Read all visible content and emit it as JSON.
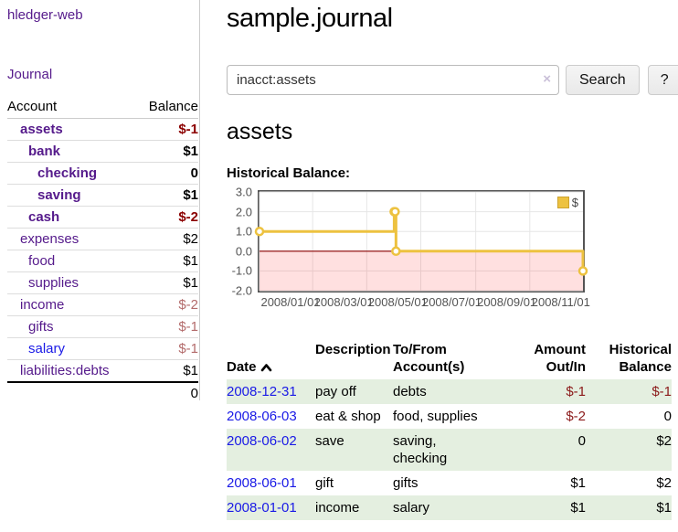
{
  "colors": {
    "brand_purple": "#551a8b",
    "link_blue": "#1a1ae6",
    "negative_strong": "#8b0000",
    "negative_muted": "#b36b6b",
    "negative_table": "#8b1a1a",
    "chart_line_gold": "#edc240",
    "row_green": "#e4efe0"
  },
  "sidebar": {
    "brand": "hledger-web",
    "nav": {
      "journal": "Journal"
    },
    "accounts_table": {
      "headers": {
        "account": "Account",
        "balance": "Balance"
      },
      "rows": [
        {
          "account": "assets",
          "balance": "$-1"
        },
        {
          "account": "bank",
          "balance": "$1"
        },
        {
          "account": "checking",
          "balance": "0"
        },
        {
          "account": "saving",
          "balance": "$1"
        },
        {
          "account": "cash",
          "balance": "$-2"
        },
        {
          "account": "expenses",
          "balance": "$2"
        },
        {
          "account": "food",
          "balance": "$1"
        },
        {
          "account": "supplies",
          "balance": "$1"
        },
        {
          "account": "income",
          "balance": "$-2"
        },
        {
          "account": "gifts",
          "balance": "$-1"
        },
        {
          "account": "salary",
          "balance": "$-1"
        },
        {
          "account": "liabilities:debts",
          "balance": "$1"
        }
      ],
      "total": "0"
    }
  },
  "main": {
    "title": "sample.journal",
    "search": {
      "value": "inacct:assets",
      "clear_icon": "×",
      "search_button": "Search",
      "help_button": "?"
    },
    "account_heading": "assets",
    "chart_heading": "Historical Balance:"
  },
  "chart_data": {
    "type": "line",
    "step": true,
    "title": "Historical Balance:",
    "x": [
      "2008-01-01",
      "2008-06-01",
      "2008-06-02",
      "2008-06-03",
      "2008-12-31"
    ],
    "series": [
      {
        "name": "$",
        "values": [
          1,
          2,
          2,
          0,
          -1
        ]
      }
    ],
    "xlim": [
      "2008-01-01",
      "2008-12-31"
    ],
    "ylim": [
      -2,
      3
    ],
    "x_tick_dates": [
      "2008-01-01",
      "2008-03-01",
      "2008-05-01",
      "2008-07-01",
      "2008-09-01",
      "2008-11-01"
    ],
    "x_tick_labels": [
      "2008/01/01",
      "2008/03/01",
      "2008/05/01",
      "2008/07/01",
      "2008/09/01",
      "2008/11/01"
    ],
    "y_ticks": [
      3,
      2,
      1,
      0,
      -1,
      -2
    ],
    "y_tick_labels": [
      "3.0",
      "2.0",
      "1.0",
      "0.0",
      "-1.0",
      "-2.0"
    ],
    "grid": true,
    "legend_position": "top-right",
    "line_color": "#edc240",
    "zero_line_color": "#8b0000",
    "negative_region_fill": "rgba(255,0,0,0.12)"
  },
  "register": {
    "headers": {
      "date": "Date",
      "description": "Description",
      "accounts": "To/From\nAccount(s)",
      "amount": "Amount\nOut/In",
      "balance": "Historical\nBalance"
    },
    "rows": [
      {
        "date": "2008-12-31",
        "description": "pay off",
        "accounts": "debts",
        "amount": "$-1",
        "balance": "$-1"
      },
      {
        "date": "2008-06-03",
        "description": "eat & shop",
        "accounts": "food, supplies",
        "amount": "$-2",
        "balance": "0"
      },
      {
        "date": "2008-06-02",
        "description": "save",
        "accounts": "saving,\nchecking",
        "amount": "0",
        "balance": "$2"
      },
      {
        "date": "2008-06-01",
        "description": "gift",
        "accounts": "gifts",
        "amount": "$1",
        "balance": "$2"
      },
      {
        "date": "2008-01-01",
        "description": "income",
        "accounts": "salary",
        "amount": "$1",
        "balance": "$1"
      }
    ]
  }
}
